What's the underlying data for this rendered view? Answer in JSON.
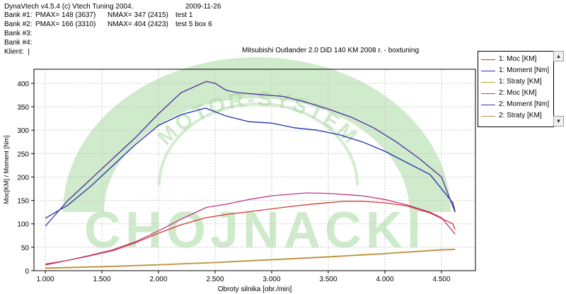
{
  "header": {
    "software": "DynaVtech v4.5.4 (c) Vtech Tuning 2004.",
    "date": "2009-11-26",
    "bank1": {
      "label": "Bank #1:",
      "pmax": "PMAX= 148 (3637)",
      "nmax": "NMAX= 347 (2415)",
      "name": "test 1"
    },
    "bank2": {
      "label": "Bank #2:",
      "pmax": "PMAX= 166 (3310)",
      "nmax": "NMAX= 404 (2423)",
      "name": "test 5 box 6"
    },
    "bank3": "Bank #3:",
    "bank4": "Bank #4:",
    "client": "Klient:  |"
  },
  "watermark": {
    "text": "CHOJNACKI",
    "arc_text": "MOTOR-SYSTEM",
    "color": "#a9d9a2"
  },
  "chart_data": {
    "type": "line",
    "title": "Mitsubishi Outlander 2.0 DiD 140 KM 2008 r. - boxtuning",
    "xlabel": "Obroty silnika [obr./min]",
    "ylabel": "Moc[KM] / Moment [Nm]",
    "xlim": [
      900,
      4800
    ],
    "ylim": [
      0,
      430
    ],
    "x_ticks": [
      1000,
      1500,
      2000,
      2500,
      3000,
      3500,
      4000,
      4500
    ],
    "x_tick_labels": [
      "1.000",
      "1.500",
      "2.000",
      "2.500",
      "3.000",
      "3.500",
      "4.000",
      "4.500"
    ],
    "y_ticks": [
      0,
      50,
      100,
      150,
      200,
      250,
      300,
      350,
      400
    ],
    "y_tick_labels": [
      "0",
      "50",
      "100",
      "150",
      "200",
      "250",
      "300",
      "350",
      "400"
    ],
    "grid": true,
    "legend_position": "right",
    "series": [
      {
        "name": "1: Moc [KM]",
        "color": "#d2372d",
        "x": [
          1000,
          1200,
          1400,
          1600,
          1800,
          2000,
          2200,
          2415,
          2600,
          2800,
          3000,
          3200,
          3400,
          3637,
          3800,
          4000,
          4200,
          4400,
          4600,
          4620
        ],
        "y": [
          14,
          22,
          32,
          43,
          60,
          80,
          98,
          113,
          120,
          126,
          132,
          138,
          143,
          148,
          148,
          145,
          138,
          123,
          100,
          88
        ]
      },
      {
        "name": "1: Moment [Nm]",
        "color": "#1c2fa8",
        "x": [
          1000,
          1200,
          1400,
          1600,
          1800,
          2000,
          2200,
          2415,
          2600,
          2800,
          3000,
          3200,
          3400,
          3600,
          3800,
          4000,
          4200,
          4400,
          4600,
          4620
        ],
        "y": [
          112,
          140,
          180,
          225,
          270,
          310,
          333,
          347,
          330,
          318,
          315,
          305,
          300,
          290,
          275,
          255,
          230,
          205,
          145,
          127
        ]
      },
      {
        "name": "1: Straty [KM]",
        "color": "#b0a826",
        "x": [
          1000,
          1500,
          2000,
          2500,
          3000,
          3500,
          4000,
          4500,
          4620
        ],
        "y": [
          6,
          9,
          13,
          18,
          24,
          30,
          37,
          45,
          46
        ]
      },
      {
        "name": "2: Moc [KM]",
        "color": "#c1367e",
        "x": [
          1000,
          1200,
          1400,
          1600,
          1800,
          2000,
          2200,
          2423,
          2600,
          2800,
          3000,
          3310,
          3500,
          3800,
          4000,
          4200,
          4400,
          4500,
          4620
        ],
        "y": [
          12,
          22,
          33,
          45,
          62,
          85,
          110,
          135,
          142,
          152,
          160,
          166,
          165,
          160,
          152,
          140,
          125,
          113,
          78
        ]
      },
      {
        "name": "2: Moment [Nm]",
        "color": "#4b2f97",
        "x": [
          1000,
          1200,
          1400,
          1600,
          1800,
          2000,
          2200,
          2423,
          2500,
          2600,
          2700,
          2900,
          3100,
          3300,
          3500,
          3700,
          3900,
          4100,
          4300,
          4500,
          4620
        ],
        "y": [
          95,
          150,
          195,
          240,
          285,
          335,
          380,
          404,
          400,
          385,
          380,
          376,
          372,
          360,
          345,
          328,
          305,
          275,
          240,
          200,
          125
        ]
      },
      {
        "name": "2: Straty [KM]",
        "color": "#c98a4e",
        "x": [
          1000,
          1500,
          2000,
          2500,
          3000,
          3500,
          4000,
          4500,
          4620
        ],
        "y": [
          5,
          8,
          12,
          17,
          23,
          29,
          36,
          44,
          45
        ]
      }
    ]
  }
}
